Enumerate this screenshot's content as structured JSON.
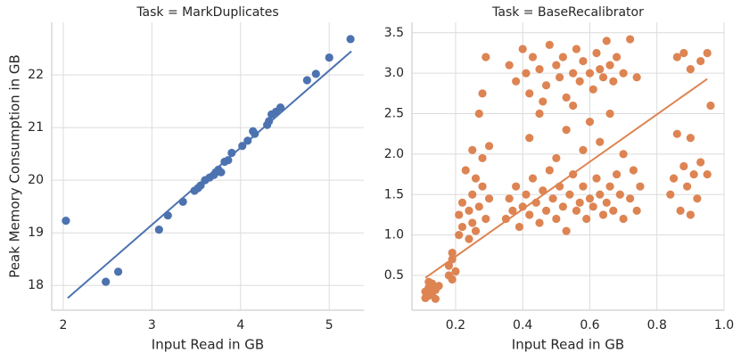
{
  "chart_data": [
    {
      "type": "scatter",
      "title": "Task = MarkDuplicates",
      "xlabel": "Input Read in GB",
      "ylabel": "Peak Memory Consumption in GB",
      "color": "#4c72b0",
      "grid": true,
      "xlim": [
        1.87,
        5.39
      ],
      "ylim": [
        17.53,
        23.0
      ],
      "xticks": [
        2,
        3,
        4,
        5
      ],
      "yticks": [
        18,
        19,
        20,
        21,
        22
      ],
      "x": [
        2.03,
        2.48,
        2.62,
        3.08,
        3.18,
        3.35,
        3.48,
        3.52,
        3.55,
        3.6,
        3.65,
        3.7,
        3.72,
        3.75,
        3.78,
        3.82,
        3.86,
        3.9,
        4.02,
        4.08,
        4.14,
        4.16,
        4.3,
        4.32,
        4.35,
        4.4,
        4.45,
        4.75,
        4.85,
        5.0,
        5.24
      ],
      "y": [
        19.23,
        18.07,
        18.26,
        19.06,
        19.33,
        19.59,
        19.8,
        19.85,
        19.9,
        20.0,
        20.05,
        20.1,
        20.15,
        20.2,
        20.15,
        20.35,
        20.38,
        20.52,
        20.65,
        20.75,
        20.93,
        20.88,
        21.05,
        21.12,
        21.25,
        21.3,
        21.38,
        21.9,
        22.02,
        22.33,
        22.68
      ],
      "regression_line": {
        "x": [
          2.05,
          5.25
        ],
        "y": [
          17.76,
          22.45
        ]
      }
    },
    {
      "type": "scatter",
      "title": "Task = BaseRecalibrator",
      "xlabel": "Input Read in GB",
      "color": "#dd8452",
      "grid": true,
      "xlim": [
        0.07,
        1.0
      ],
      "ylim": [
        0.07,
        3.63
      ],
      "xticks": [
        0.2,
        0.4,
        0.6,
        0.8,
        {
          "value": 1,
          "label": "1.0"
        }
      ],
      "yticks": [
        0.5,
        {
          "value": 1,
          "label": "1.0"
        },
        1.5,
        {
          "value": 2,
          "label": "2.0"
        },
        2.5,
        {
          "value": 3,
          "label": "3.0"
        },
        3.5
      ],
      "x": [
        0.11,
        0.11,
        0.12,
        0.12,
        0.13,
        0.13,
        0.14,
        0.14,
        0.15,
        0.12,
        0.18,
        0.18,
        0.19,
        0.19,
        0.2,
        0.19,
        0.21,
        0.21,
        0.22,
        0.22,
        0.23,
        0.24,
        0.24,
        0.25,
        0.25,
        0.26,
        0.27,
        0.28,
        0.29,
        0.3,
        0.26,
        0.25,
        0.27,
        0.28,
        0.29,
        0.3,
        0.28,
        0.35,
        0.36,
        0.37,
        0.38,
        0.39,
        0.4,
        0.41,
        0.42,
        0.43,
        0.44,
        0.45,
        0.46,
        0.47,
        0.48,
        0.49,
        0.5,
        0.51,
        0.52,
        0.53,
        0.54,
        0.55,
        0.56,
        0.57,
        0.58,
        0.59,
        0.6,
        0.61,
        0.62,
        0.63,
        0.64,
        0.65,
        0.66,
        0.67,
        0.68,
        0.69,
        0.7,
        0.72,
        0.73,
        0.74,
        0.75,
        0.36,
        0.38,
        0.4,
        0.41,
        0.42,
        0.43,
        0.45,
        0.47,
        0.48,
        0.5,
        0.51,
        0.52,
        0.53,
        0.55,
        0.56,
        0.57,
        0.58,
        0.6,
        0.61,
        0.62,
        0.63,
        0.64,
        0.65,
        0.66,
        0.67,
        0.68,
        0.7,
        0.72,
        0.74,
        0.46,
        0.42,
        0.45,
        0.5,
        0.53,
        0.55,
        0.58,
        0.6,
        0.63,
        0.66,
        0.7,
        0.84,
        0.85,
        0.86,
        0.87,
        0.88,
        0.89,
        0.9,
        0.9,
        0.91,
        0.92,
        0.93,
        0.95,
        0.86,
        0.88,
        0.9,
        0.93,
        0.95,
        0.96
      ],
      "y": [
        0.22,
        0.3,
        0.35,
        0.25,
        0.28,
        0.4,
        0.32,
        0.21,
        0.37,
        0.42,
        0.5,
        0.62,
        0.7,
        0.78,
        0.55,
        0.45,
        1.0,
        1.25,
        1.4,
        1.1,
        1.8,
        1.3,
        0.95,
        1.5,
        1.15,
        1.7,
        1.35,
        1.6,
        1.2,
        1.45,
        1.05,
        2.05,
        2.5,
        2.75,
        3.2,
        2.1,
        1.95,
        1.2,
        1.45,
        1.3,
        1.6,
        1.1,
        1.35,
        1.5,
        1.25,
        1.7,
        1.4,
        1.15,
        1.55,
        1.3,
        1.8,
        1.45,
        1.2,
        1.6,
        1.35,
        1.05,
        1.5,
        1.75,
        1.3,
        1.4,
        1.6,
        1.2,
        1.45,
        1.35,
        1.7,
        1.5,
        1.25,
        1.4,
        1.6,
        1.3,
        1.75,
        1.5,
        1.2,
        1.45,
        1.8,
        1.3,
        1.6,
        3.1,
        2.9,
        3.3,
        3.0,
        2.75,
        3.2,
        3.05,
        2.85,
        3.35,
        3.1,
        2.95,
        3.2,
        2.7,
        3.0,
        3.3,
        2.9,
        3.15,
        3.0,
        2.8,
        3.25,
        3.05,
        2.95,
        3.4,
        3.1,
        2.9,
        3.2,
        3.0,
        3.42,
        2.95,
        2.65,
        2.2,
        2.5,
        1.95,
        2.3,
        2.6,
        2.05,
        2.4,
        2.15,
        2.5,
        2.0,
        1.5,
        1.7,
        2.25,
        1.3,
        1.85,
        1.6,
        1.25,
        2.2,
        1.75,
        1.45,
        1.9,
        1.75,
        3.2,
        3.25,
        3.05,
        3.15,
        3.25,
        2.6
      ],
      "regression_line": {
        "x": [
          0.11,
          0.95
        ],
        "y": [
          0.47,
          2.93
        ]
      }
    }
  ]
}
